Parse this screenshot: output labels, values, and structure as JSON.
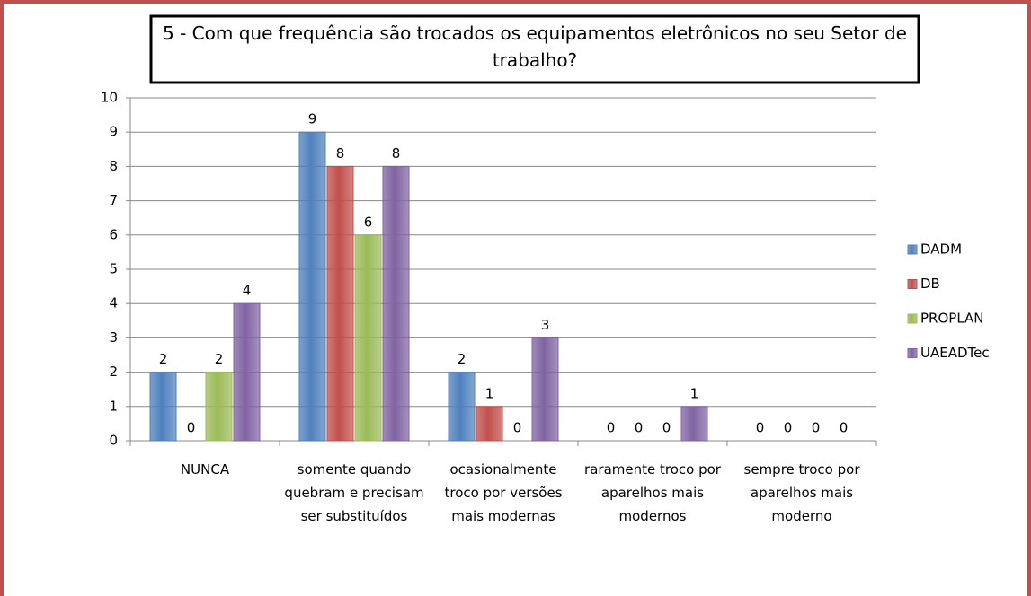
{
  "chart_data": {
    "type": "bar",
    "title": "5 - Com que frequência são trocados os equipamentos eletrônicos no seu Setor de trabalho?",
    "categories": [
      "NUNCA",
      "somente quando quebram e precisam ser substituídos",
      "ocasionalmente troco por versões mais modernas",
      "raramente troco por aparelhos mais modernos",
      "sempre troco por aparelhos mais moderno"
    ],
    "series": [
      {
        "name": "DADM",
        "color": "#4f81bd",
        "values": [
          2,
          9,
          2,
          0,
          0
        ]
      },
      {
        "name": "DB",
        "color": "#c0504d",
        "values": [
          0,
          8,
          1,
          0,
          0
        ]
      },
      {
        "name": "PROPLAN",
        "color": "#9bbb59",
        "values": [
          2,
          6,
          0,
          0,
          0
        ]
      },
      {
        "name": "UAEADTec",
        "color": "#8064a2",
        "values": [
          4,
          8,
          3,
          1,
          0
        ]
      }
    ],
    "ylim": [
      0,
      10
    ],
    "yticks": [
      0,
      1,
      2,
      3,
      4,
      5,
      6,
      7,
      8,
      9,
      10
    ],
    "grid": true,
    "legend": "right"
  }
}
